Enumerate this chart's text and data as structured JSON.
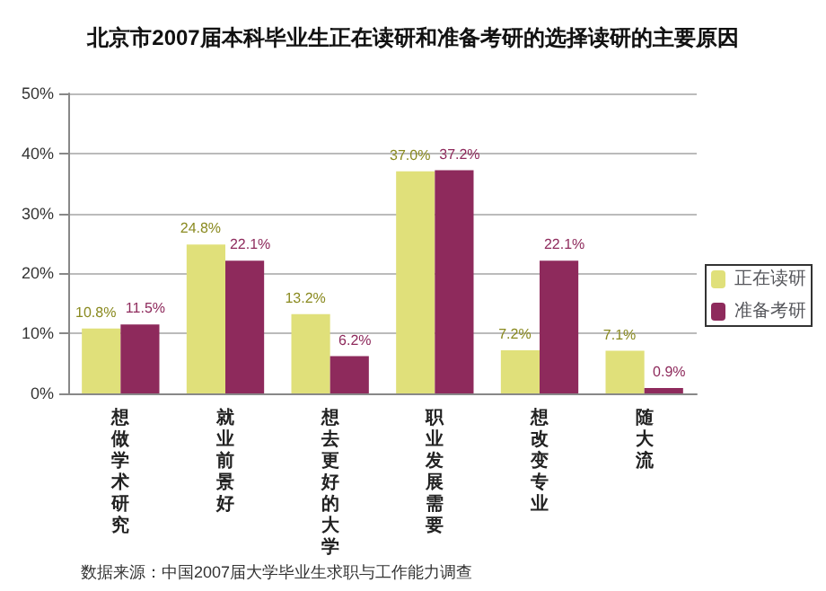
{
  "chart_data": {
    "type": "bar",
    "title": "北京市2007届本科毕业生正在读研和准备考研的选择读研的主要原因",
    "categories": [
      "想做学术研究",
      "就业前景好",
      "想去更好的大学",
      "职业发展需要",
      "想改变专业",
      "随大流"
    ],
    "series": [
      {
        "name": "正在读研",
        "color": "#e0e07a",
        "values": [
          10.8,
          24.8,
          13.2,
          37.0,
          7.2,
          7.1
        ],
        "value_labels": [
          "10.8%",
          "24.8%",
          "13.2%",
          "37.0%",
          "7.2%",
          "7.1%"
        ]
      },
      {
        "name": "准备考研",
        "color": "#8e2a5c",
        "values": [
          11.5,
          22.1,
          6.2,
          37.2,
          22.1,
          0.9
        ],
        "value_labels": [
          "11.5%",
          "22.1%",
          "6.2%",
          "37.2%",
          "22.1%",
          "0.9%"
        ]
      }
    ],
    "ylim": [
      0,
      50
    ],
    "yticks": [
      {
        "value": 0,
        "label": "0%"
      },
      {
        "value": 10,
        "label": "10%"
      },
      {
        "value": 20,
        "label": "20%"
      },
      {
        "value": 30,
        "label": "30%"
      },
      {
        "value": 40,
        "label": "40%"
      },
      {
        "value": 50,
        "label": "50%"
      }
    ],
    "grid": "y",
    "legend": "right",
    "annotations": [
      "数据来源：中国2007届大学毕业生求职与工作能力调查"
    ]
  }
}
